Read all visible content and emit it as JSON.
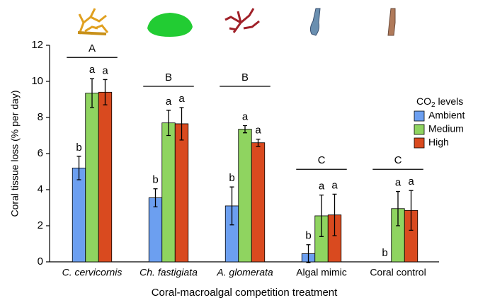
{
  "chart_data": {
    "type": "bar",
    "y_label": "Coral tissue loss (% per day)",
    "x_label": "Coral-macroalgal competition treatment",
    "categories": [
      "C. cervicornis",
      "Ch. fastigiata",
      "A. glomerata",
      "Algal mimic",
      "Coral control"
    ],
    "italic_categories": [
      true,
      true,
      true,
      false,
      false
    ],
    "group_letters": [
      "A",
      "B",
      "B",
      "C",
      "C"
    ],
    "legend_title": [
      "CO",
      "2",
      " levels"
    ],
    "series": [
      {
        "name": "Ambient",
        "color": "#6c9ff0",
        "values": [
          5.2,
          3.55,
          3.1,
          0.45,
          0
        ],
        "errors": [
          0.65,
          0.5,
          1.05,
          0.5,
          null
        ],
        "letters": [
          "b",
          "b",
          "b",
          "b",
          "b"
        ]
      },
      {
        "name": "Medium",
        "color": "#8fd460",
        "values": [
          9.35,
          7.7,
          7.35,
          2.55,
          2.95
        ],
        "errors": [
          0.8,
          0.7,
          0.2,
          1.15,
          0.95
        ],
        "letters": [
          "a",
          "a",
          "a",
          "a",
          "a"
        ]
      },
      {
        "name": "High",
        "color": "#d94a1f",
        "values": [
          9.4,
          7.65,
          6.6,
          2.6,
          2.85
        ],
        "errors": [
          0.7,
          0.9,
          0.2,
          1.15,
          1.1
        ],
        "letters": [
          "a",
          "a",
          "a",
          "a",
          "a"
        ]
      }
    ],
    "ylim": [
      0,
      12
    ],
    "yticks": [
      0,
      2,
      4,
      6,
      8,
      10,
      12
    ]
  }
}
